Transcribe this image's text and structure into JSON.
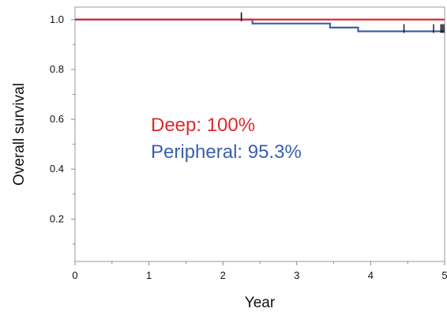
{
  "chart_data": {
    "type": "line",
    "xlabel": "Year",
    "ylabel": "Overall survival",
    "xlim": [
      0,
      5
    ],
    "ylim": [
      0.03,
      1.05
    ],
    "x_ticks": [
      "0",
      "1",
      "2",
      "3",
      "4",
      "5"
    ],
    "y_ticks": [
      "0.2",
      "0.4",
      "0.6",
      "0.8",
      "1.0"
    ],
    "grid": false,
    "legend": "none",
    "series": [
      {
        "key": "deep",
        "color": "#e0282e",
        "steps": [
          [
            0,
            1.0
          ],
          [
            5,
            1.0
          ]
        ],
        "censor": [
          2.25
        ],
        "annotation": "Deep: 100%"
      },
      {
        "key": "peripheral",
        "color": "#3a5fb0",
        "steps": [
          [
            0,
            1.0
          ],
          [
            2.4,
            0.984
          ],
          [
            3.45,
            0.968
          ],
          [
            3.83,
            0.953
          ],
          [
            5,
            0.953
          ]
        ],
        "censor": [
          2.25,
          4.45,
          4.85,
          4.95,
          4.97,
          4.99
        ],
        "annotation": "Peripheral: 95.3%"
      }
    ]
  }
}
